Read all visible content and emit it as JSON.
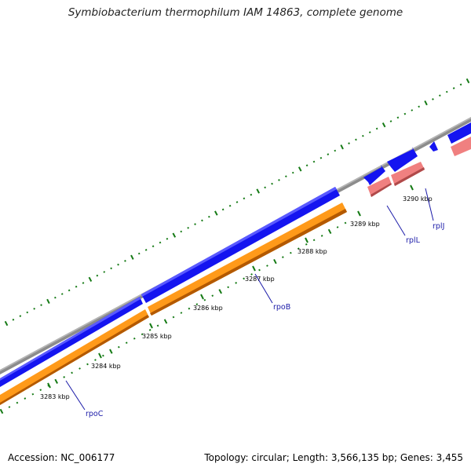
{
  "title": "Symbiobacterium thermophilum IAM 14863, complete genome",
  "footer": {
    "accession": "Accession: NC_006177",
    "summary": "Topology: circular; Length: 3,566,135 bp; Genes: 3,455"
  },
  "colors": {
    "backbone": "#8c8c8c",
    "forward_gene": "#1414f0",
    "reverse_gene": "#ff9a1a",
    "rna_gene": "#f08080",
    "ticks": "#157a15",
    "label_line": "#1a1aa8"
  },
  "scale_ticks": [
    {
      "label": "3283 kbp"
    },
    {
      "label": "3284 kbp"
    },
    {
      "label": "3285 kbp"
    },
    {
      "label": "3286 kbp"
    },
    {
      "label": "3287 kbp"
    },
    {
      "label": "3288 kbp"
    },
    {
      "label": "3289 kbp"
    },
    {
      "label": "3290 kbp"
    }
  ],
  "genes": [
    {
      "name": "rpoC"
    },
    {
      "name": "rpoB"
    },
    {
      "name": "rplL"
    },
    {
      "name": "rplJ"
    }
  ]
}
